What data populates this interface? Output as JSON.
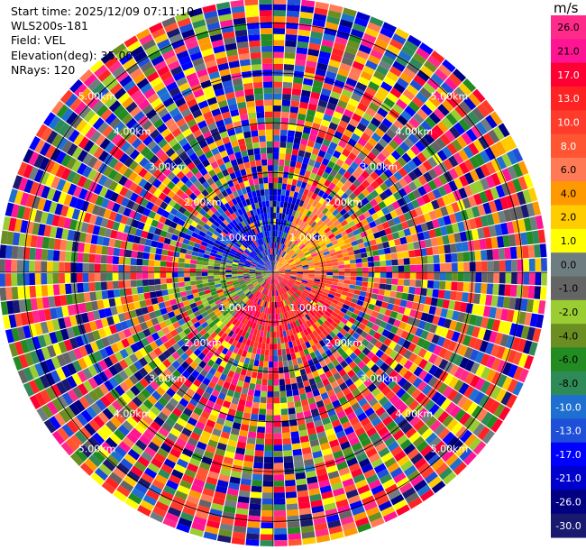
{
  "header": {
    "start_time": "Start time: 2025/12/09 07:11:10",
    "station": "WLS200s-181",
    "field": "Field: VEL",
    "elevation": "Elevation(deg): 35.00",
    "nrays": "NRays: 120"
  },
  "chart_data": {
    "type": "heatmap",
    "projection": "polar-ppi",
    "field": "VEL",
    "units": "m/s",
    "nrays": 120,
    "elevation_deg": 35.0,
    "max_range_km": 5.5,
    "range_rings_km": [
      1,
      2,
      3,
      4,
      5
    ],
    "range_ring_labels": [
      "1.00km",
      "2.00km",
      "3.00km",
      "4.00km",
      "5.00km"
    ],
    "colorbar_ticks": [
      "26.0",
      "21.0",
      "17.0",
      "13.0",
      "10.0",
      "8.0",
      "6.0",
      "4.0",
      "2.0",
      "1.0",
      "0.0",
      "-1.0",
      "-2.0",
      "-4.0",
      "-6.0",
      "-8.0",
      "-10.0",
      "-13.0",
      "-17.0",
      "-21.0",
      "-26.0",
      "-30.0"
    ],
    "colorbar_colors": [
      "#ff2a8a",
      "#ff1493",
      "#ff0033",
      "#ff2222",
      "#ff3b2b",
      "#ff5533",
      "#ff7a55",
      "#ff9900",
      "#ffcc00",
      "#ffff00",
      "#6e7e80",
      "#646464",
      "#9acd32",
      "#6b8e23",
      "#228b22",
      "#2e8b57",
      "#1e6fd0",
      "#1e4fd8",
      "#0000ff",
      "#0000cd",
      "#000080",
      "#191970"
    ],
    "colorbar_range": [
      -30.0,
      30.0
    ]
  }
}
